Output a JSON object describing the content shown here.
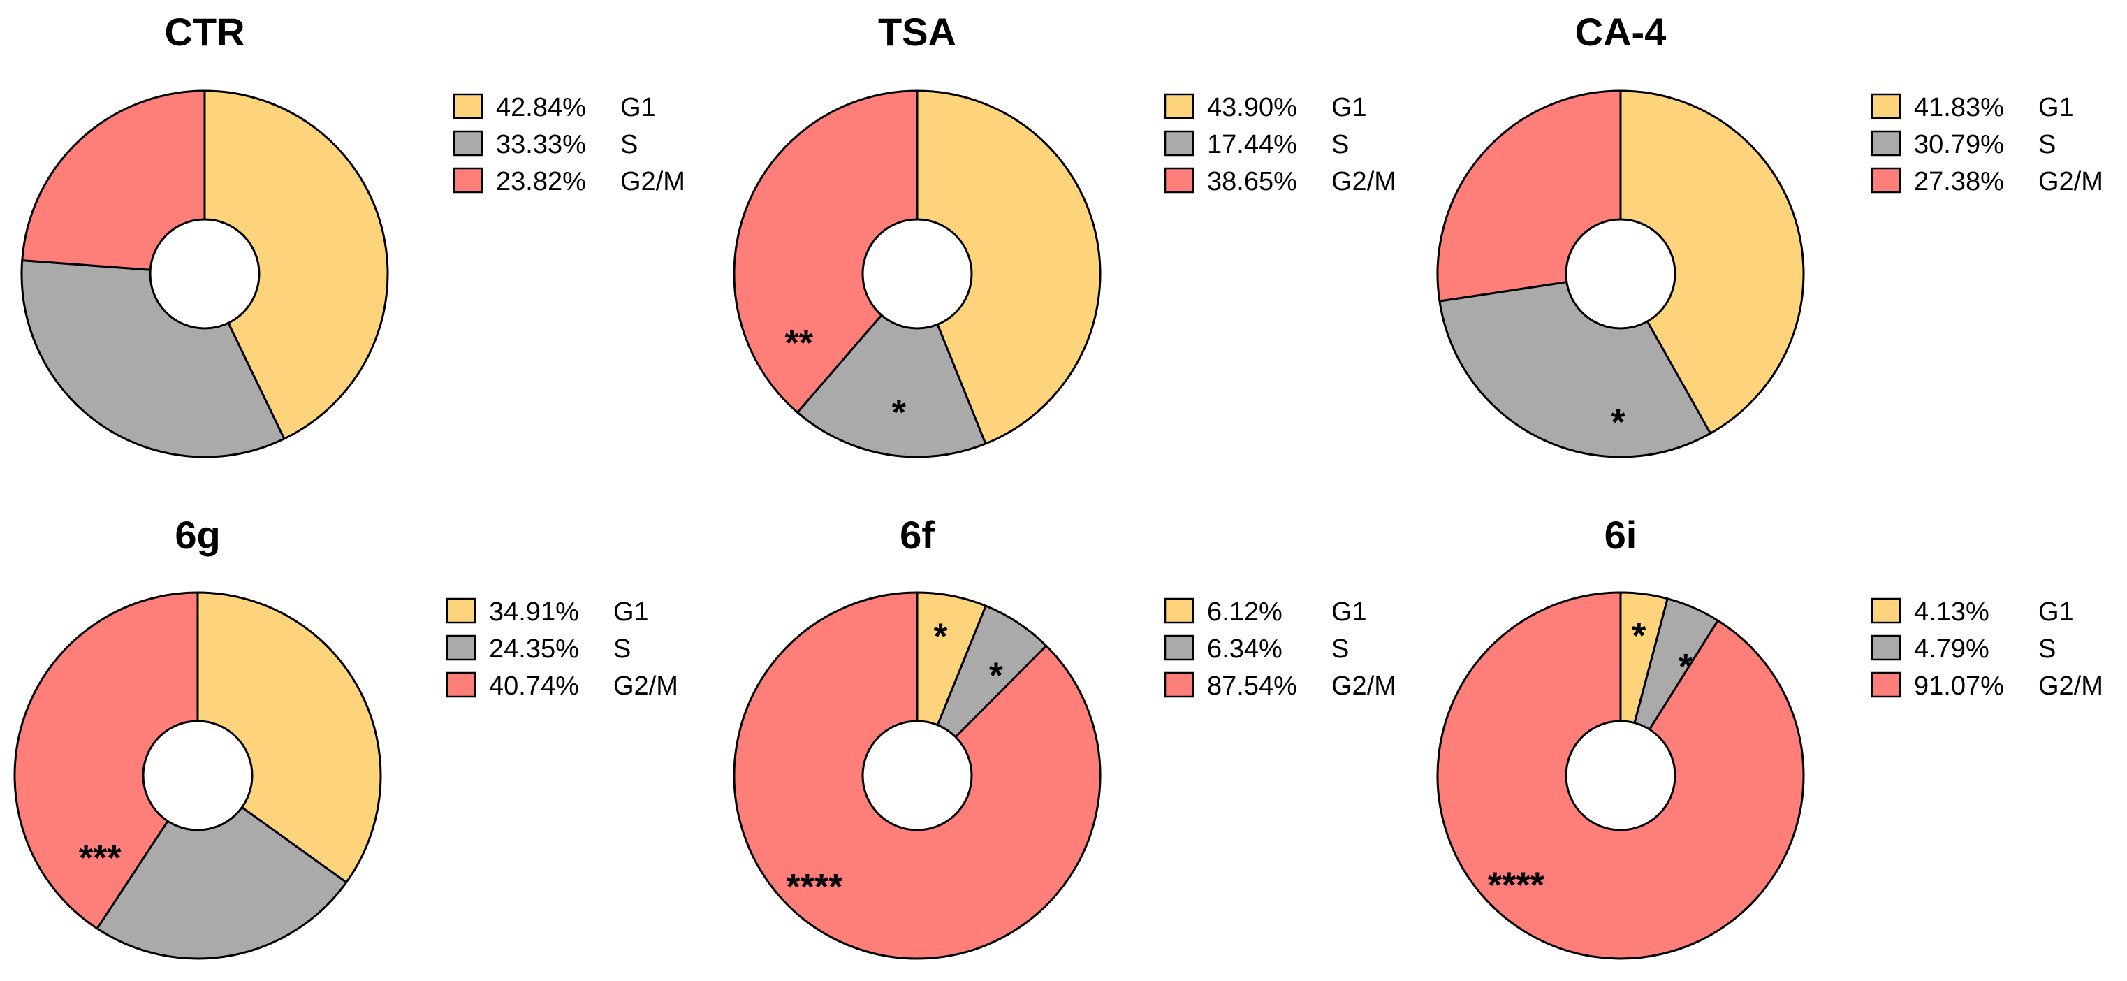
{
  "chart_data": [
    {
      "type": "pie",
      "title": "CTR",
      "categories": [
        "G1",
        "S",
        "G2/M"
      ],
      "values": [
        42.84,
        33.33,
        23.82
      ],
      "value_labels": [
        "42.84%",
        "33.33%",
        "23.82%"
      ],
      "colors": [
        "#FDD47C",
        "#AAAAAA",
        "#FE7E7A"
      ],
      "significance": [
        "",
        "",
        ""
      ]
    },
    {
      "type": "pie",
      "title": "TSA",
      "categories": [
        "G1",
        "S",
        "G2/M"
      ],
      "values": [
        43.9,
        17.44,
        38.65
      ],
      "value_labels": [
        "43.90%",
        "17.44%",
        "38.65%"
      ],
      "colors": [
        "#FDD47C",
        "#AAAAAA",
        "#FE7E7A"
      ],
      "significance": [
        "",
        "*",
        "**"
      ]
    },
    {
      "type": "pie",
      "title": "CA-4",
      "categories": [
        "G1",
        "S",
        "G2/M"
      ],
      "values": [
        41.83,
        30.79,
        27.38
      ],
      "value_labels": [
        "41.83%",
        "30.79%",
        "27.38%"
      ],
      "colors": [
        "#FDD47C",
        "#AAAAAA",
        "#FE7E7A"
      ],
      "significance": [
        "",
        "*",
        ""
      ]
    },
    {
      "type": "pie",
      "title": "6g",
      "categories": [
        "G1",
        "S",
        "G2/M"
      ],
      "values": [
        34.91,
        24.35,
        40.74
      ],
      "value_labels": [
        "34.91%",
        "24.35%",
        "40.74%"
      ],
      "colors": [
        "#FDD47C",
        "#AAAAAA",
        "#FE7E7A"
      ],
      "significance": [
        "",
        "",
        "***"
      ]
    },
    {
      "type": "pie",
      "title": "6f",
      "categories": [
        "G1",
        "S",
        "G2/M"
      ],
      "values": [
        6.12,
        6.34,
        87.54
      ],
      "value_labels": [
        "6.12%",
        "6.34%",
        "87.54%"
      ],
      "colors": [
        "#FDD47C",
        "#AAAAAA",
        "#FE7E7A"
      ],
      "significance": [
        "*",
        "*",
        "****"
      ]
    },
    {
      "type": "pie",
      "title": "6i",
      "categories": [
        "G1",
        "S",
        "G2/M"
      ],
      "values": [
        4.13,
        4.79,
        91.07
      ],
      "value_labels": [
        "4.13%",
        "4.79%",
        "91.07%"
      ],
      "colors": [
        "#FDD47C",
        "#AAAAAA",
        "#FE7E7A"
      ],
      "significance": [
        "*",
        "*",
        "****"
      ]
    }
  ]
}
